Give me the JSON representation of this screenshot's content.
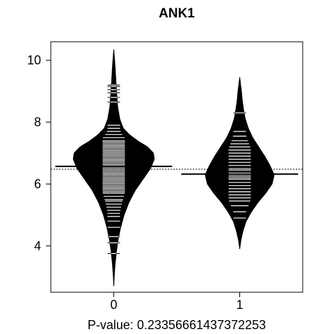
{
  "chart_data": {
    "type": "beanplot",
    "title": "ANK1",
    "xlabel": "P-value: 0.23356661437372253",
    "ylabel": "",
    "categories": [
      "0",
      "1"
    ],
    "yticks": [
      4,
      6,
      8,
      10
    ],
    "ytick_labels": [
      "4",
      "6",
      "8",
      "10"
    ],
    "ylim": [
      2.5,
      10.6
    ],
    "xlim": [
      0.5,
      2.5
    ],
    "overall_mean": 6.48,
    "groups": [
      {
        "label": "0",
        "mean": 6.57,
        "density": [
          [
            2.7,
            0.0
          ],
          [
            3.0,
            0.01
          ],
          [
            3.4,
            0.03
          ],
          [
            3.8,
            0.06
          ],
          [
            4.2,
            0.1
          ],
          [
            4.6,
            0.16
          ],
          [
            5.0,
            0.24
          ],
          [
            5.4,
            0.35
          ],
          [
            5.8,
            0.5
          ],
          [
            6.2,
            0.7
          ],
          [
            6.5,
            0.85
          ],
          [
            6.8,
            0.94
          ],
          [
            7.0,
            0.92
          ],
          [
            7.2,
            0.78
          ],
          [
            7.4,
            0.55
          ],
          [
            7.6,
            0.36
          ],
          [
            7.8,
            0.22
          ],
          [
            8.1,
            0.14
          ],
          [
            8.5,
            0.09
          ],
          [
            8.9,
            0.07
          ],
          [
            9.3,
            0.05
          ],
          [
            9.7,
            0.035
          ],
          [
            10.0,
            0.02
          ],
          [
            10.35,
            0.0
          ]
        ],
        "observations": [
          3.75,
          4.1,
          4.3,
          4.6,
          4.8,
          4.95,
          5.05,
          5.15,
          5.25,
          5.35,
          5.45,
          5.5,
          5.6,
          5.7,
          5.75,
          5.8,
          5.85,
          5.9,
          5.95,
          6.0,
          6.05,
          6.1,
          6.15,
          6.2,
          6.25,
          6.3,
          6.35,
          6.4,
          6.45,
          6.5,
          6.55,
          6.6,
          6.65,
          6.7,
          6.75,
          6.8,
          6.85,
          6.9,
          6.95,
          7.0,
          7.05,
          7.1,
          7.15,
          7.2,
          7.25,
          7.3,
          7.35,
          7.4,
          7.5,
          7.6,
          7.7,
          7.8,
          7.9,
          8.65,
          8.8,
          8.95,
          9.05,
          9.15,
          9.2
        ]
      },
      {
        "label": "1",
        "mean": 6.32,
        "density": [
          [
            3.9,
            0.0
          ],
          [
            4.2,
            0.03
          ],
          [
            4.5,
            0.08
          ],
          [
            4.8,
            0.15
          ],
          [
            5.1,
            0.27
          ],
          [
            5.4,
            0.42
          ],
          [
            5.7,
            0.6
          ],
          [
            6.0,
            0.75
          ],
          [
            6.3,
            0.8
          ],
          [
            6.6,
            0.7
          ],
          [
            6.9,
            0.58
          ],
          [
            7.2,
            0.44
          ],
          [
            7.5,
            0.3
          ],
          [
            7.8,
            0.2
          ],
          [
            8.1,
            0.13
          ],
          [
            8.4,
            0.09
          ],
          [
            8.7,
            0.06
          ],
          [
            9.0,
            0.04
          ],
          [
            9.45,
            0.0
          ]
        ],
        "observations": [
          4.9,
          5.1,
          5.3,
          5.45,
          5.55,
          5.65,
          5.75,
          5.85,
          5.95,
          6.05,
          6.15,
          6.2,
          6.25,
          6.3,
          6.35,
          6.45,
          6.5,
          6.6,
          6.7,
          6.8,
          6.9,
          7.0,
          7.1,
          7.2,
          7.3,
          7.4,
          7.55,
          7.7,
          8.3
        ]
      }
    ],
    "grid": false,
    "legend": "none"
  }
}
